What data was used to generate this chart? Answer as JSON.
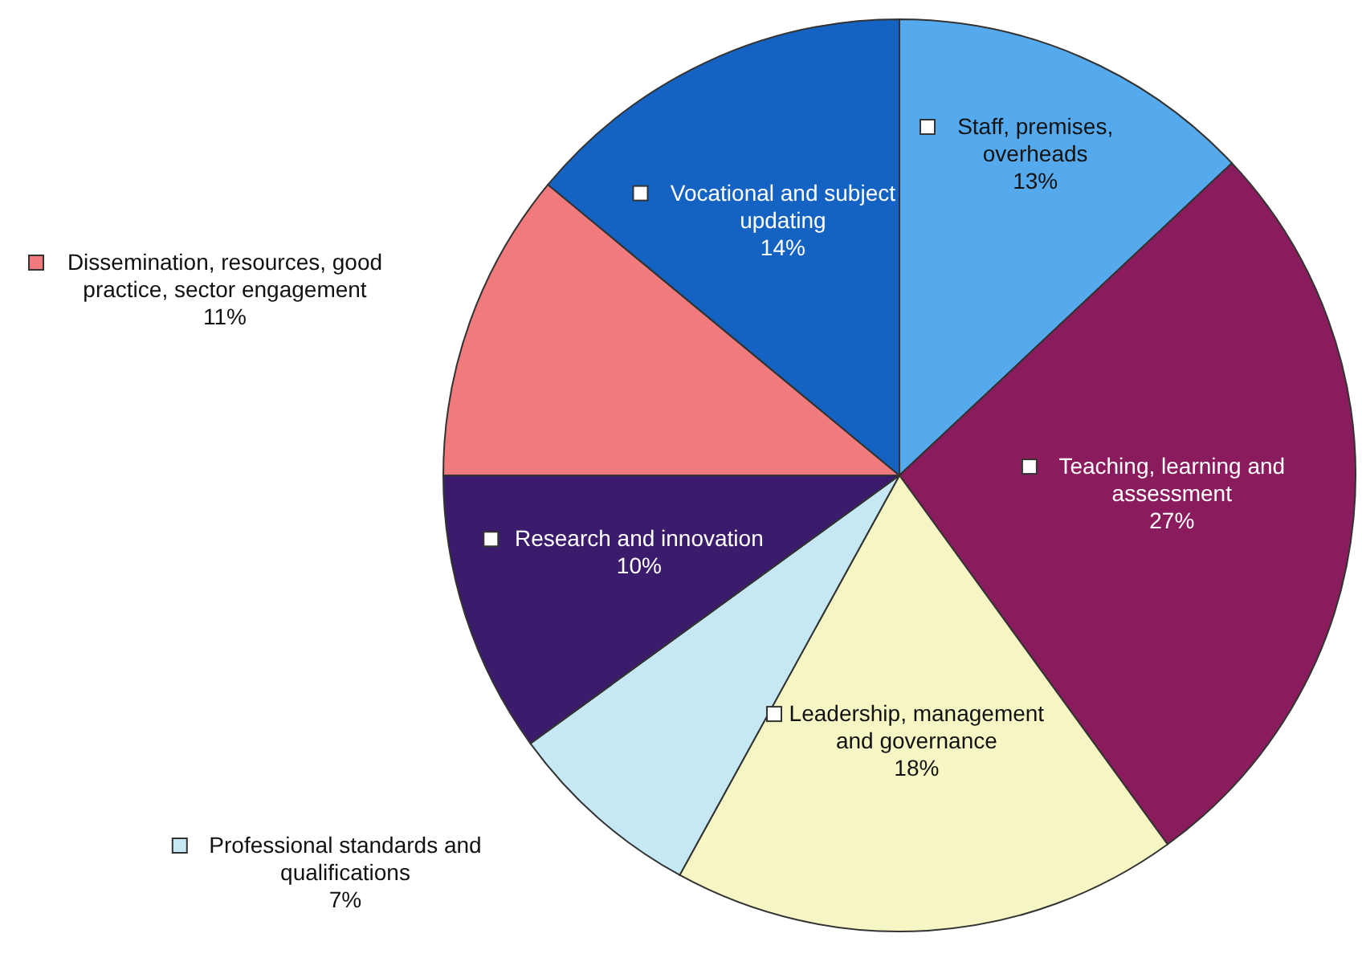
{
  "chart_data": {
    "type": "pie",
    "categories": [
      "Staff, premises, overheads",
      "Teaching, learning and assessment",
      "Leadership, management and governance",
      "Professional standards and qualifications",
      "Research and innovation",
      "Dissemination, resources, good practice, sector engagement",
      "Vocational and subject updating"
    ],
    "values": [
      13,
      27,
      18,
      7,
      10,
      11,
      14
    ],
    "legend": "left",
    "value_labels": [
      "13%",
      "27%",
      "18%",
      "7%",
      "10%",
      "11%",
      "14%"
    ],
    "colors": [
      "#55aaee",
      "#8a1c5e",
      "#f6f6c4",
      "#c6e8f4",
      "#3b1c6c",
      "#f07a7c",
      "#1462c2"
    ]
  }
}
